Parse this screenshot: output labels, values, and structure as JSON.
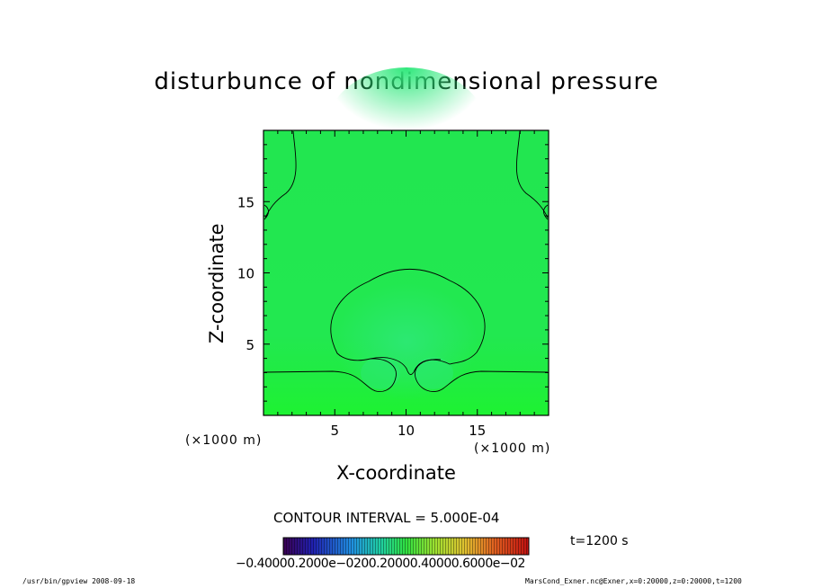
{
  "chart_data": {
    "type": "heatmap",
    "title": "disturbunce of nondimensional pressure",
    "xlabel": "X-coordinate",
    "ylabel": "Z-coordinate",
    "x_unit": "(×1000 m)",
    "y_unit": "(×1000 m)",
    "xlim": [
      0,
      20
    ],
    "ylim": [
      0,
      20
    ],
    "x_ticks": [
      5,
      10,
      15
    ],
    "y_ticks": [
      5,
      10,
      15
    ],
    "x_tick_labels": [
      "5",
      "10",
      "15"
    ],
    "y_tick_labels": [
      "5",
      "10",
      "15"
    ],
    "contour_interval_label": "CONTOUR INTERVAL = 5.000E-04",
    "time_label": "t=1200 s",
    "colorbar_labels": "−0.40000.2000e−0200.20000.40000.6000e−02",
    "colorbar_range": [
      -0.004,
      0.006
    ],
    "colors": {
      "field_background": "#22e856",
      "field_lower": "#1ef238",
      "field_upper_anomaly": "#2fe878",
      "contour_line": "#000000"
    },
    "grid": false
  },
  "footer": {
    "left": "/usr/bin/gpview   2008-09-18",
    "right": "MarsCond_Exner.nc@Exner,x=0:20000,z=0:20000,t=1200"
  }
}
